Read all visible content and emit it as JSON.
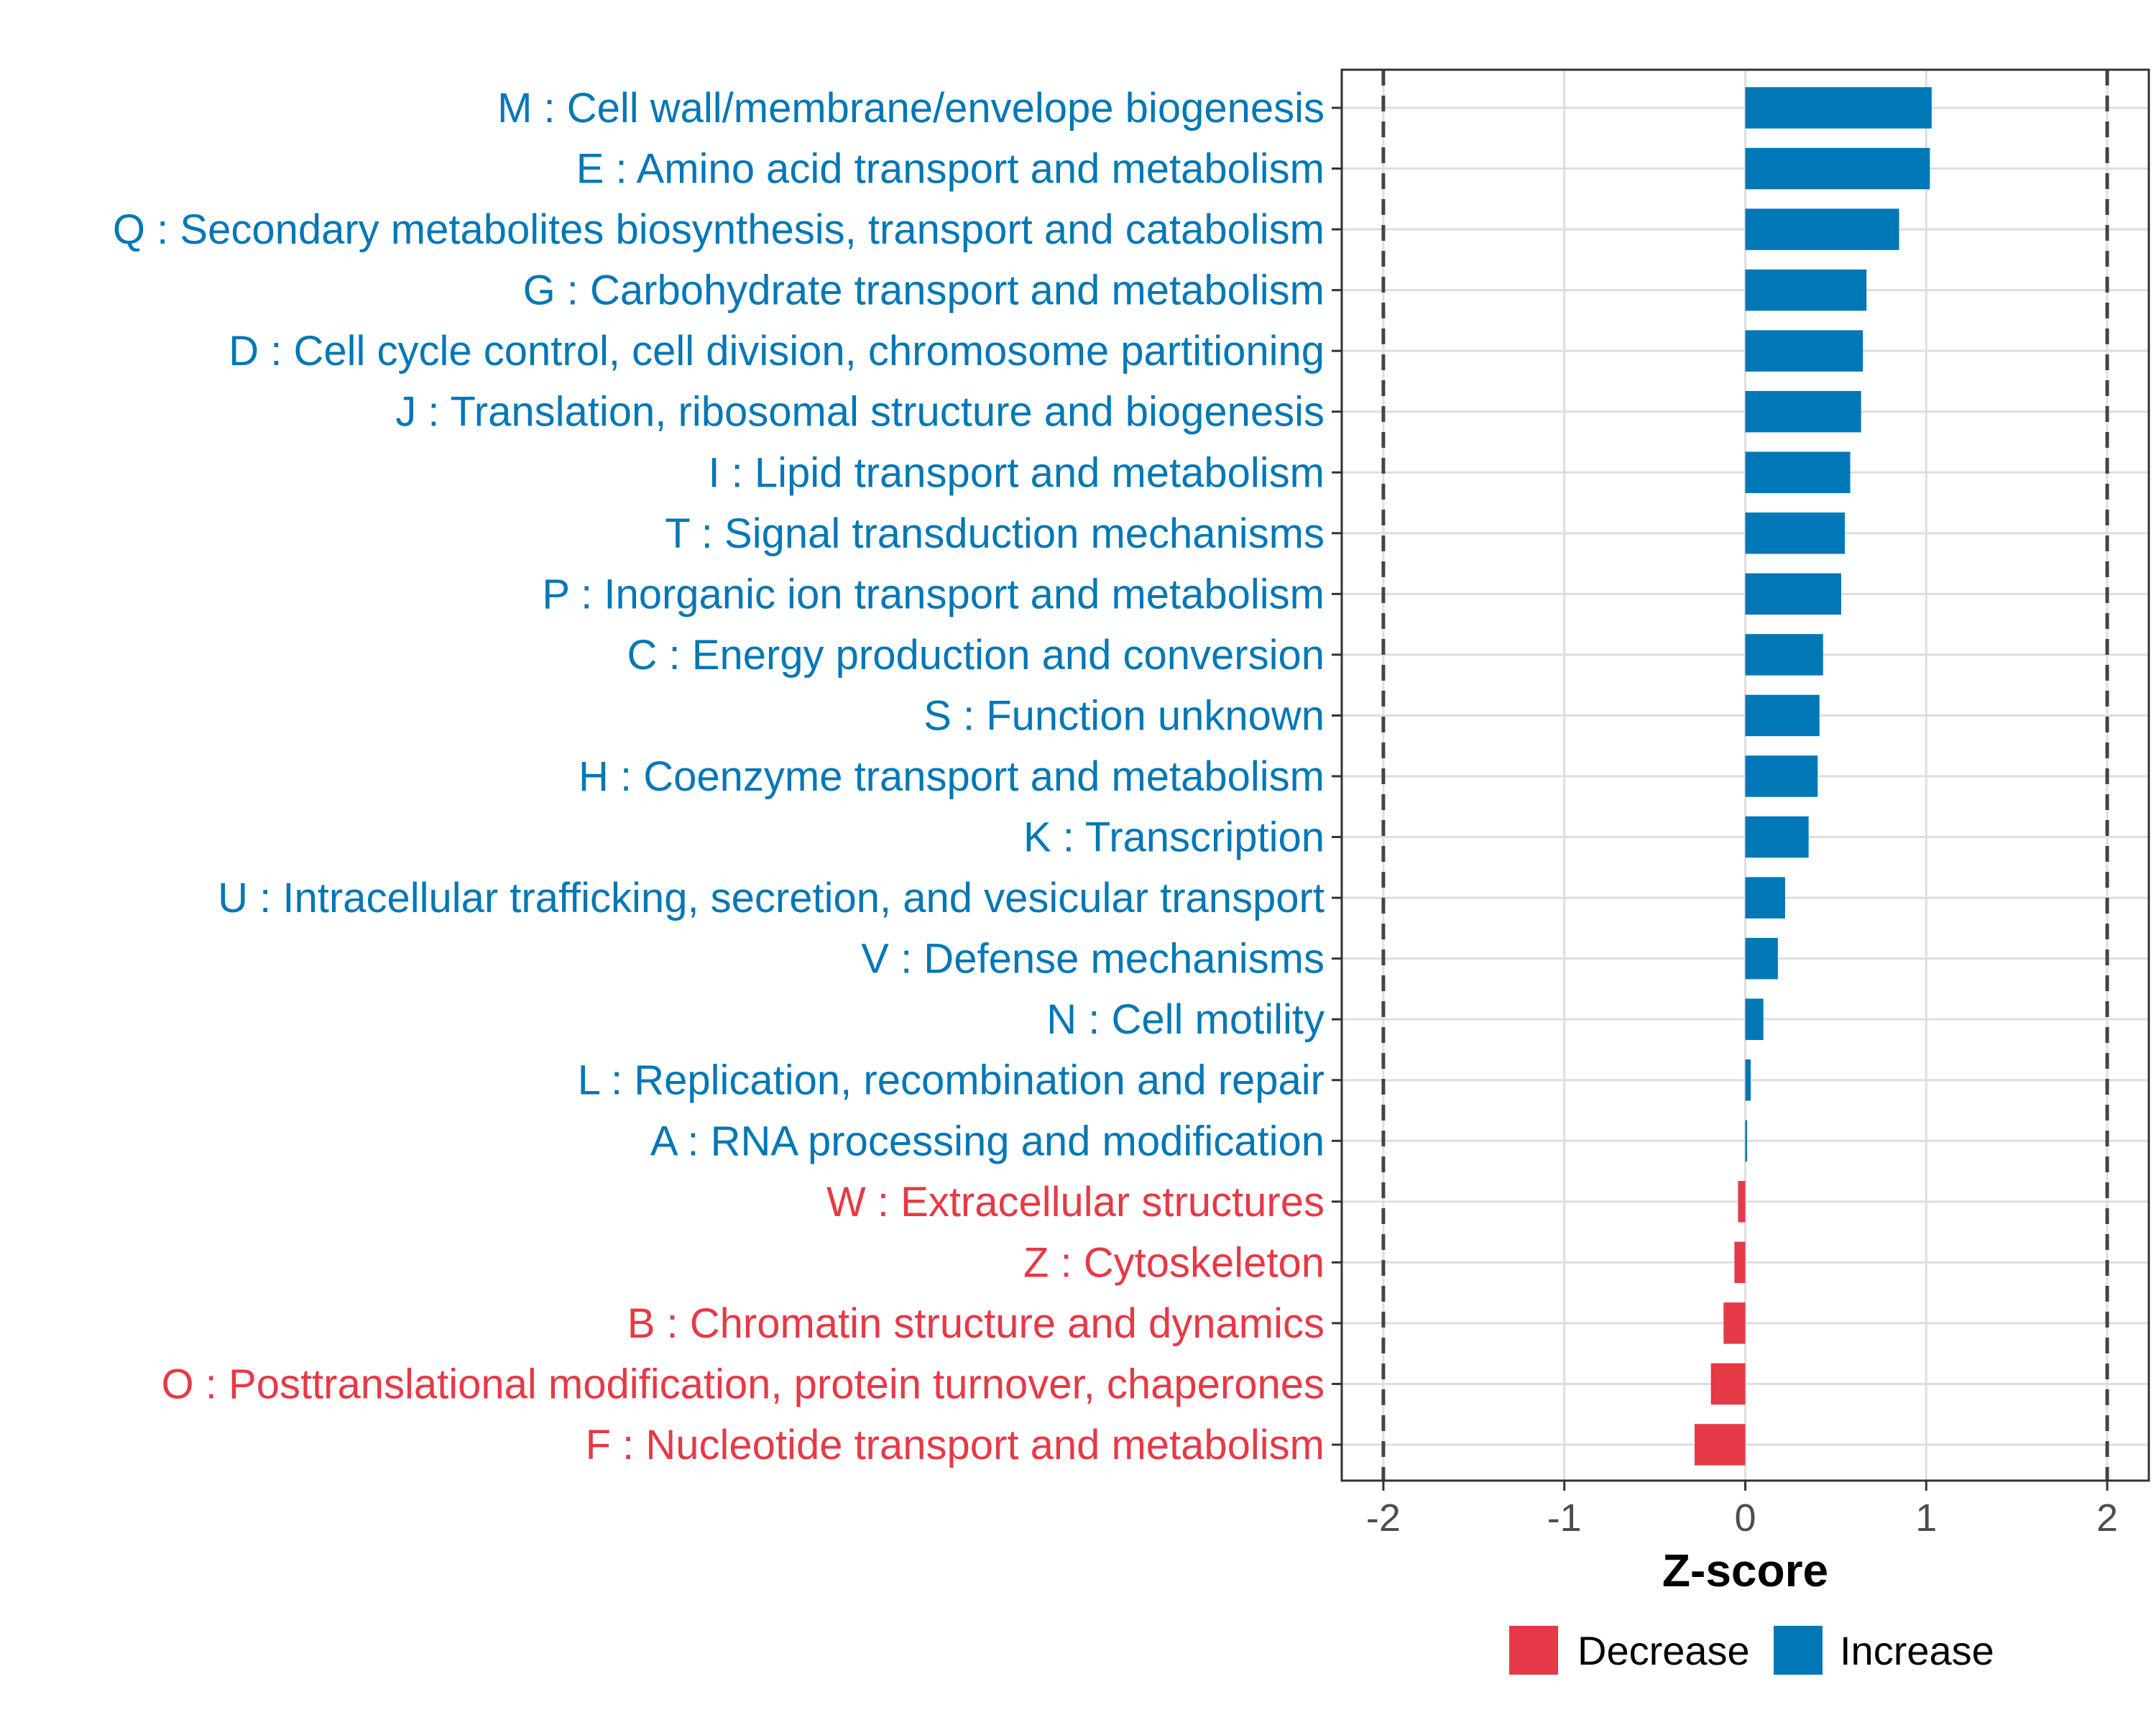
{
  "chart_data": {
    "type": "bar",
    "orientation": "horizontal",
    "xlabel": "Z-score",
    "xlim": [
      -2.23,
      2.23
    ],
    "xticks": [
      -2,
      -1,
      0,
      1,
      2
    ],
    "tick_labels": [
      "-2",
      "-1",
      "0",
      "1",
      "2"
    ],
    "threshold_lines": [
      -2,
      2
    ],
    "grid": true,
    "categories": [
      "M : Cell wall/membrane/envelope biogenesis",
      "E : Amino acid transport and metabolism",
      "Q : Secondary metabolites biosynthesis, transport and catabolism",
      "G : Carbohydrate transport and metabolism",
      "D : Cell cycle control, cell division, chromosome partitioning",
      "J : Translation, ribosomal structure and biogenesis",
      "I : Lipid transport and metabolism",
      "T : Signal transduction mechanisms",
      "P : Inorganic ion transport and metabolism",
      "C : Energy production and conversion",
      "S : Function unknown",
      "H : Coenzyme transport and metabolism",
      "K : Transcription",
      "U : Intracellular trafficking, secretion, and vesicular transport",
      "V : Defense mechanisms",
      "N : Cell motility",
      "L : Replication, recombination and repair",
      "A : RNA processing and modification",
      "W : Extracellular structures",
      "Z : Cytoskeleton",
      "B : Chromatin structure and dynamics",
      "O : Posttranslational modification, protein turnover, chaperones",
      "F : Nucleotide transport and metabolism"
    ],
    "values": [
      1.03,
      1.02,
      0.85,
      0.67,
      0.65,
      0.64,
      0.58,
      0.55,
      0.53,
      0.43,
      0.41,
      0.4,
      0.35,
      0.22,
      0.18,
      0.1,
      0.03,
      0.01,
      -0.04,
      -0.06,
      -0.12,
      -0.19,
      -0.28
    ],
    "legend": {
      "position": "bottom",
      "entries": [
        {
          "name": "Decrease",
          "color": "#E63946"
        },
        {
          "name": "Increase",
          "color": "#0077B6"
        }
      ]
    }
  }
}
